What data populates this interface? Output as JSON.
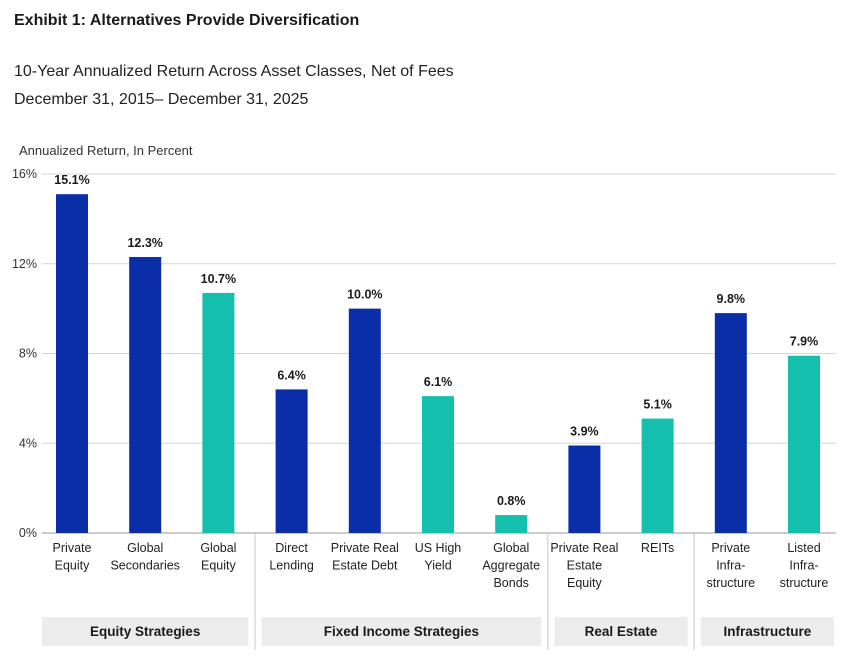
{
  "header": {
    "exhibit_title": "Exhibit 1: Alternatives Provide Diversification",
    "subtitle_line1": "10-Year Annualized Return Across Asset Classes, Net of Fees",
    "subtitle_line2": "December 31, 2015– December 31, 2025"
  },
  "colors": {
    "private": "#0a2ea8",
    "public": "#14bfae",
    "grid": "#d6d6d6",
    "group_band": "#ececec"
  },
  "chart_data": {
    "type": "bar",
    "title": "",
    "ylabel": "Annualized Return, In Percent",
    "ylim": [
      0,
      16
    ],
    "yticks": [
      0,
      4,
      8,
      12,
      16
    ],
    "ytick_labels": [
      "0%",
      "4%",
      "8%",
      "12%",
      "16%"
    ],
    "grid": true,
    "categories": [
      [
        "Private",
        "Equity"
      ],
      [
        "Global",
        "Secondaries"
      ],
      [
        "Global",
        "Equity"
      ],
      [
        "Direct",
        "Lending"
      ],
      [
        "Private Real",
        "Estate Debt"
      ],
      [
        "US High",
        "Yield"
      ],
      [
        "Global",
        "Aggregate",
        "Bonds"
      ],
      [
        "Private Real",
        "Estate",
        "Equity"
      ],
      [
        "REITs"
      ],
      [
        "Private",
        "Infra-",
        "structure"
      ],
      [
        "Listed",
        "Infra-",
        "structure"
      ]
    ],
    "values": [
      15.1,
      12.3,
      10.7,
      6.4,
      10.0,
      6.1,
      0.8,
      3.9,
      5.1,
      9.8,
      7.9
    ],
    "value_labels": [
      "15.1%",
      "12.3%",
      "10.7%",
      "6.4%",
      "10.0%",
      "6.1%",
      "0.8%",
      "3.9%",
      "5.1%",
      "9.8%",
      "7.9%"
    ],
    "bar_type": [
      "private",
      "private",
      "public",
      "private",
      "private",
      "public",
      "public",
      "private",
      "public",
      "private",
      "public"
    ],
    "groups": [
      {
        "label": "Equity Strategies",
        "start": 0,
        "end": 2
      },
      {
        "label": "Fixed Income Strategies",
        "start": 3,
        "end": 6
      },
      {
        "label": "Real Estate",
        "start": 7,
        "end": 8
      },
      {
        "label": "Infrastructure",
        "start": 9,
        "end": 10
      }
    ]
  }
}
